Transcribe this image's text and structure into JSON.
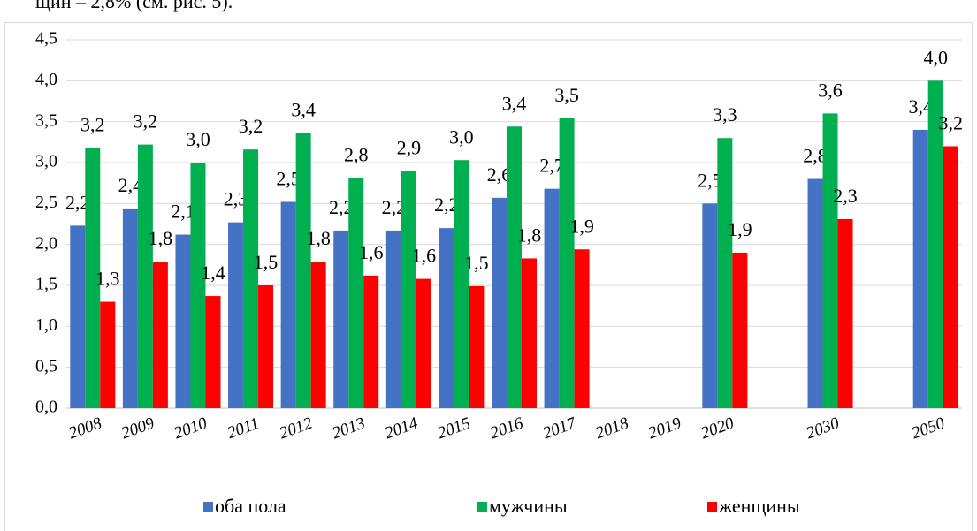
{
  "page_text": "щин – 2,8% (см. рис. 5).",
  "chart_data": {
    "type": "bar",
    "categories": [
      "2008",
      "2009",
      "2010",
      "2011",
      "2012",
      "2013",
      "2014",
      "2015",
      "2016",
      "2017",
      "2018",
      "2019",
      "2020",
      null,
      "2030",
      null,
      "2050"
    ],
    "series": [
      {
        "name": "оба пола",
        "color": "#4472c4",
        "values": [
          2.23,
          2.44,
          2.12,
          2.27,
          2.52,
          2.17,
          2.17,
          2.2,
          2.57,
          2.68,
          null,
          null,
          2.5,
          null,
          2.8,
          null,
          3.4
        ],
        "value_labels": [
          "2,2",
          "2,4",
          "2,1",
          "2,3",
          "2,5",
          "2,2",
          "2,2",
          "2,2",
          "2,6",
          "2,7",
          null,
          null,
          "2,5",
          null,
          "2,8",
          null,
          "3,4"
        ]
      },
      {
        "name": "мужчины",
        "color": "#00b050",
        "values": [
          3.18,
          3.22,
          3.0,
          3.16,
          3.36,
          2.81,
          2.9,
          3.03,
          3.44,
          3.54,
          null,
          null,
          3.3,
          null,
          3.6,
          null,
          4.0
        ],
        "value_labels": [
          "3,2",
          "3,2",
          "3,0",
          "3,2",
          "3,4",
          "2,8",
          "2,9",
          "3,0",
          "3,4",
          "3,5",
          null,
          null,
          "3,3",
          null,
          "3,6",
          null,
          "4,0"
        ]
      },
      {
        "name": "женщины",
        "color": "#ff0000",
        "values": [
          1.3,
          1.79,
          1.37,
          1.5,
          1.79,
          1.62,
          1.58,
          1.49,
          1.83,
          1.94,
          null,
          null,
          1.9,
          null,
          2.31,
          null,
          3.2
        ],
        "value_labels": [
          "1,3",
          "1,8",
          "1,4",
          "1,5",
          "1,8",
          "1,6",
          "1,6",
          "1,5",
          "1,8",
          "1,9",
          null,
          null,
          "1,9",
          null,
          "2,3",
          null,
          "3,2"
        ]
      }
    ],
    "ylim": [
      0,
      4.5
    ],
    "yticks": [
      {
        "value": 0,
        "label": "0,0"
      },
      {
        "value": 0.5,
        "label": "0,5"
      },
      {
        "value": 1,
        "label": "1,0"
      },
      {
        "value": 1.5,
        "label": "1,5"
      },
      {
        "value": 2,
        "label": "2,0"
      },
      {
        "value": 2.5,
        "label": "2,5"
      },
      {
        "value": 3,
        "label": "3,0"
      },
      {
        "value": 3.5,
        "label": "3,5"
      },
      {
        "value": 4,
        "label": "4,0"
      },
      {
        "value": 4.5,
        "label": "4,5"
      }
    ],
    "grid": true,
    "legend": "bottom"
  }
}
